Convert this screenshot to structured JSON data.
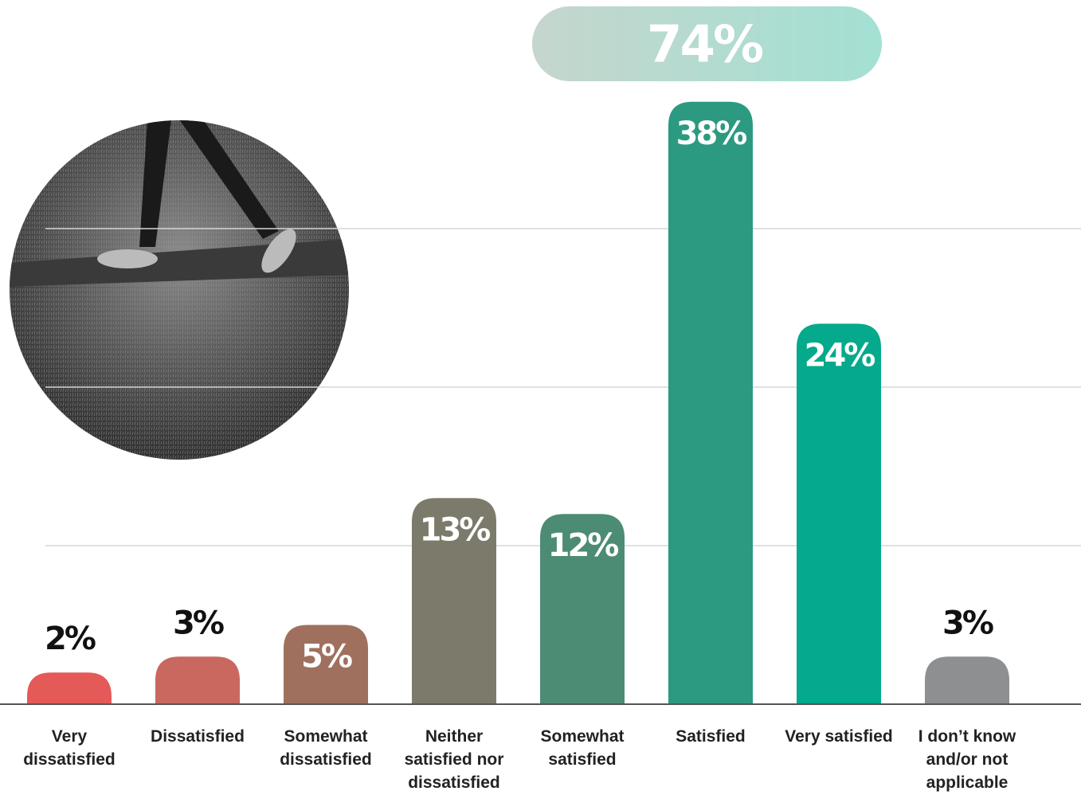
{
  "chart_data": {
    "type": "bar",
    "annotation": "74%",
    "categories": [
      "Very dissatisfied",
      "Dissatisfied",
      "Somewhat dissatisfied",
      "Neither satisfied nor dissatisfied",
      "Somewhat satisfied",
      "Satisfied",
      "Very satisfied",
      "I don’t know and/or not applicable"
    ],
    "values": [
      2,
      3,
      5,
      13,
      12,
      38,
      24,
      3
    ],
    "value_labels": [
      "2%",
      "3%",
      "5%",
      "13%",
      "12%",
      "38%",
      "24%",
      "3%"
    ],
    "colors": [
      "#e45a58",
      "#c9685f",
      "#a0705f",
      "#7c7a6a",
      "#4d8c74",
      "#2b9a80",
      "#05a98b",
      "#8e8f91"
    ],
    "ylim": [
      0,
      40
    ],
    "yticks": [
      10,
      20,
      30
    ],
    "grid": true
  }
}
